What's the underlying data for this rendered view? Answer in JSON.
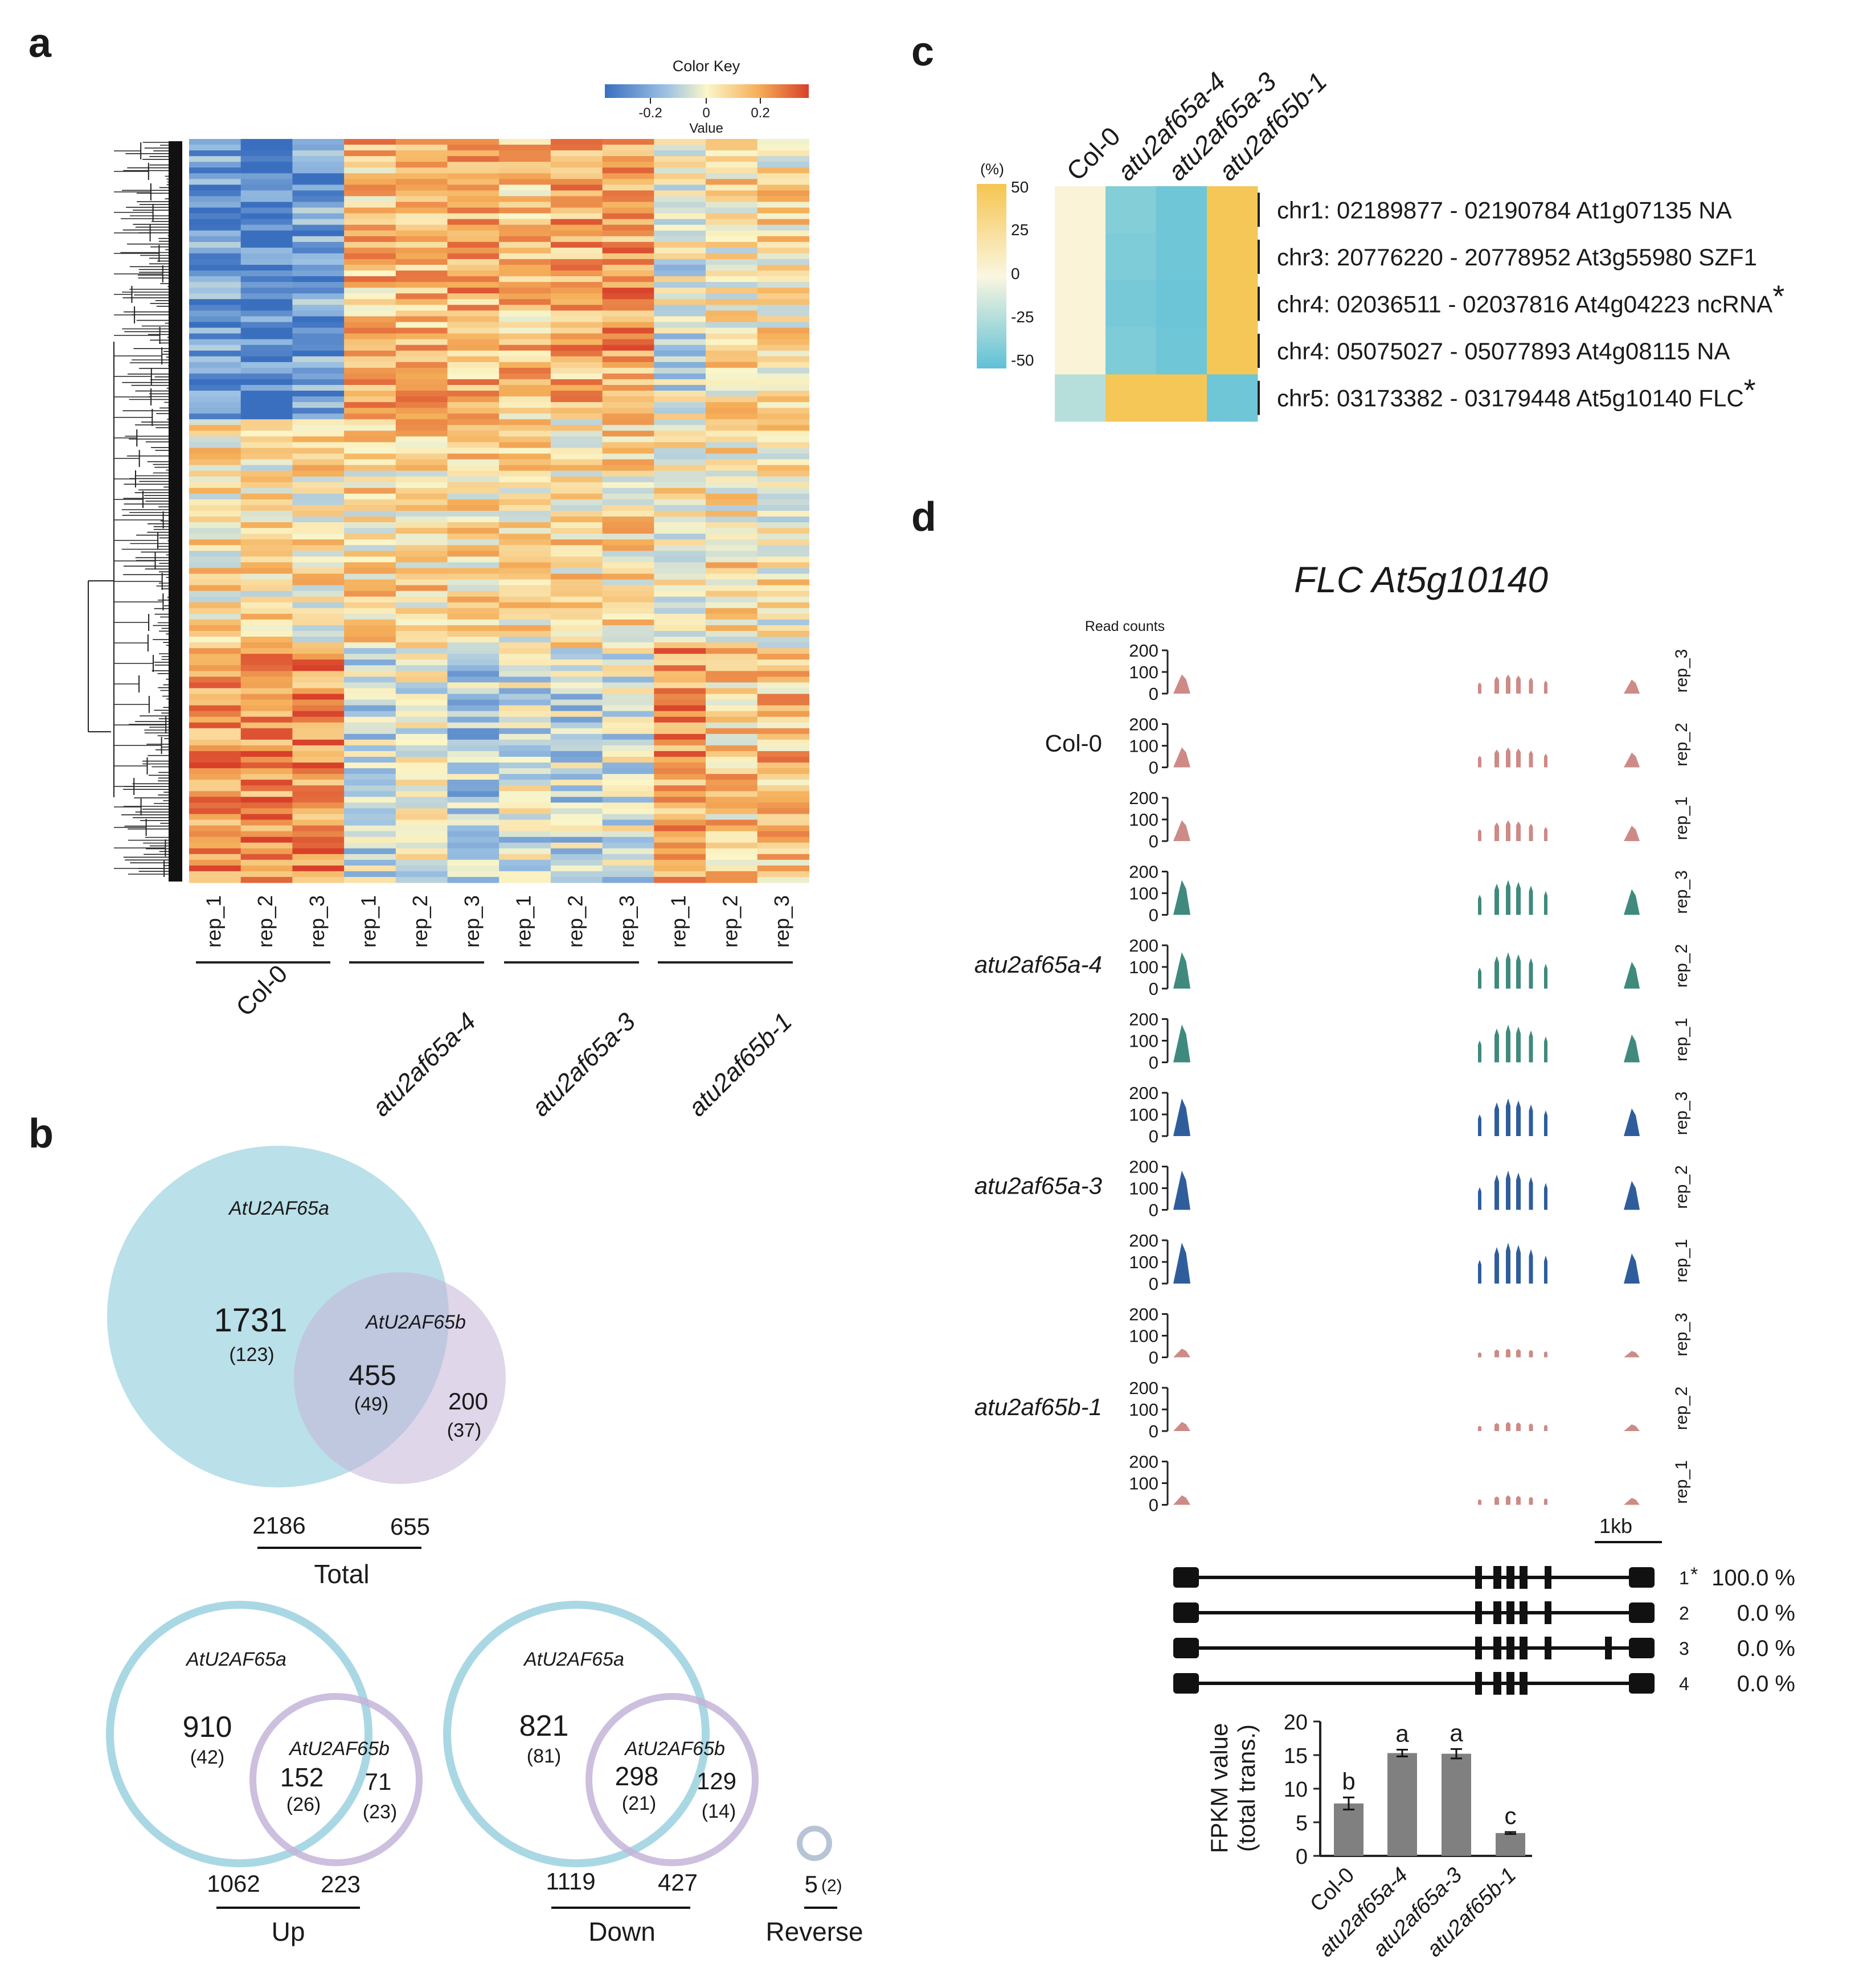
{
  "panels": {
    "a": "a",
    "b": "b",
    "c": "c",
    "d": "d"
  },
  "panel_a": {
    "color_key": {
      "title": "Color Key",
      "tick_labels": [
        "-0.2",
        "0",
        "0.2"
      ],
      "xlabel": "Value",
      "colors": [
        "#3a6fc0",
        "#9cc1e2",
        "#fbf6c9",
        "#f5b05a",
        "#d8402a"
      ]
    },
    "rep_labels": [
      "rep_1",
      "rep_2",
      "rep_3"
    ],
    "groups": [
      "Col-0",
      "atu2af65a-4",
      "atu2af65a-3",
      "atu2af65b-1"
    ]
  },
  "panel_b": {
    "total": {
      "set_a": "AtU2AF65a",
      "set_b": "AtU2AF65b",
      "only_a": "1731",
      "only_a_sub": "(123)",
      "both": "455",
      "both_sub": "(49)",
      "only_b": "200",
      "only_b_sub": "(37)",
      "total_a": "2186",
      "total_b": "655",
      "label": "Total"
    },
    "up": {
      "set_a": "AtU2AF65a",
      "set_b": "AtU2AF65b",
      "only_a": "910",
      "only_a_sub": "(42)",
      "both": "152",
      "both_sub": "(26)",
      "only_b": "71",
      "only_b_sub": "(23)",
      "total_a": "1062",
      "total_b": "223",
      "label": "Up"
    },
    "down": {
      "set_a": "AtU2AF65a",
      "set_b": "AtU2AF65b",
      "only_a": "821",
      "only_a_sub": "(81)",
      "both": "298",
      "both_sub": "(21)",
      "only_b": "129",
      "only_b_sub": "(14)",
      "total_a": "1119",
      "total_b": "427",
      "label": "Down"
    },
    "reverse": {
      "count": "5",
      "count_sub": "(2)",
      "label": "Reverse"
    }
  },
  "panel_c": {
    "unit": "(%)",
    "scale_ticks": [
      "50",
      "25",
      "0",
      "-25",
      "-50"
    ],
    "columns": [
      "Col-0",
      "atu2af65a-4",
      "atu2af65a-3",
      "atu2af65b-1"
    ],
    "rows": [
      {
        "label": "chr1: 02189877 - 02190784 At1g07135 NA",
        "star": ""
      },
      {
        "label": "chr3: 20776220 - 20778952 At3g55980 SZF1",
        "star": ""
      },
      {
        "label": "chr4: 02036511 - 02037816 At4g04223 ncRNA",
        "star": "*"
      },
      {
        "label": "chr4: 05075027 - 05077893 At4g08115 NA",
        "star": ""
      },
      {
        "label": "chr5: 03173382 - 03179448 At5g10140 FLC",
        "star": "*"
      }
    ],
    "values": [
      [
        3,
        -38,
        -45,
        48
      ],
      [
        3,
        -40,
        -45,
        48
      ],
      [
        3,
        -42,
        -46,
        48
      ],
      [
        3,
        -40,
        -45,
        48
      ],
      [
        -22,
        48,
        48,
        -45
      ]
    ],
    "colors": {
      "high": "#f5c550",
      "mid": "#fbf6e0",
      "low": "#5ec1d6"
    }
  },
  "panel_d": {
    "title": "FLC At5g10140",
    "ylabel": "Read counts",
    "yticks": [
      "200",
      "100",
      "0"
    ],
    "genotypes": [
      {
        "name": "Col-0",
        "color": "#cd8a86",
        "reps": [
          "rep_3",
          "rep_2",
          "rep_1"
        ],
        "level": 0.55
      },
      {
        "name": "atu2af65a-4",
        "color": "#3f8a7c",
        "reps": [
          "rep_3",
          "rep_2",
          "rep_1"
        ],
        "level": 1.0
      },
      {
        "name": "atu2af65a-3",
        "color": "#2f5d9c",
        "reps": [
          "rep_3",
          "rep_2",
          "rep_1"
        ],
        "level": 1.08
      },
      {
        "name": "atu2af65b-1",
        "color": "#cd8a86",
        "reps": [
          "rep_3",
          "rep_2",
          "rep_1"
        ],
        "level": 0.25
      }
    ],
    "scale_bar": "1kb",
    "transcripts": [
      {
        "id": "1",
        "star": "*",
        "pct": "100.0 %"
      },
      {
        "id": "2",
        "star": "",
        "pct": "0.0 %"
      },
      {
        "id": "3",
        "star": "",
        "pct": "0.0 %"
      },
      {
        "id": "4",
        "star": "",
        "pct": "0.0 %"
      }
    ],
    "bar_chart": {
      "ylabel_line1": "FPKM value",
      "ylabel_line2": "(total trans.)",
      "yticks": [
        "20",
        "15",
        "10",
        "5",
        "0"
      ],
      "bar_color": "#808080"
    }
  },
  "chart_data": {
    "type": "bar",
    "title": "FLC At5g10140",
    "categories": [
      "Col-0",
      "atu2af65a-4",
      "atu2af65a-3",
      "atu2af65b-1"
    ],
    "values": [
      7.8,
      15.3,
      15.2,
      3.4
    ],
    "errors": [
      0.9,
      0.5,
      0.7,
      0.15
    ],
    "significance": [
      "b",
      "a",
      "a",
      "c"
    ],
    "ylabel": "FPKM value (total trans.)",
    "ylim": [
      0,
      20
    ]
  }
}
